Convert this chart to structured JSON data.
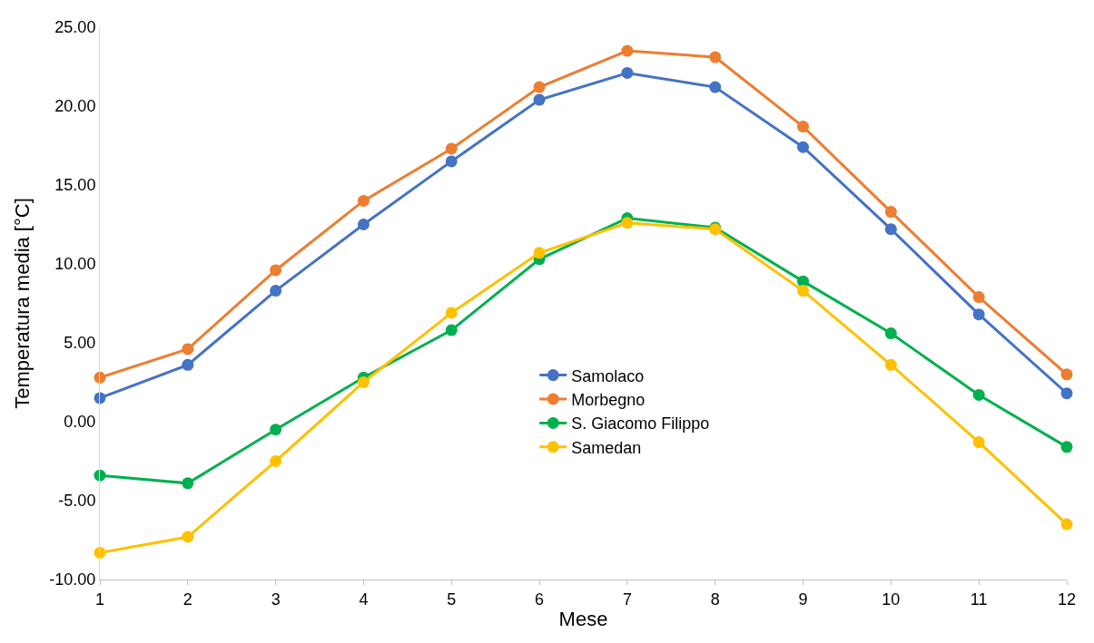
{
  "chart_data": {
    "type": "line",
    "xlabel": "Mese",
    "ylabel": "Temperatura media [°C]",
    "x": [
      1,
      2,
      3,
      4,
      5,
      6,
      7,
      8,
      9,
      10,
      11,
      12
    ],
    "xlim": [
      1,
      12
    ],
    "xticks": [
      1,
      2,
      3,
      4,
      5,
      6,
      7,
      8,
      9,
      10,
      11,
      12
    ],
    "series": [
      {
        "name": "Samolaco",
        "color": "#4472c4",
        "values": [
          1.5,
          3.6,
          8.3,
          12.5,
          16.5,
          20.4,
          22.1,
          21.2,
          17.4,
          12.2,
          6.8,
          1.8
        ]
      },
      {
        "name": "Morbegno",
        "color": "#ed7d31",
        "values": [
          2.8,
          4.6,
          9.6,
          14.0,
          17.3,
          21.2,
          23.5,
          23.1,
          18.7,
          13.3,
          7.9,
          3.0
        ]
      },
      {
        "name": "S. Giacomo Filippo",
        "color": "#00b050",
        "values": [
          -3.4,
          -3.9,
          -0.5,
          2.8,
          5.8,
          10.3,
          12.9,
          12.3,
          8.9,
          5.6,
          1.7,
          -1.6
        ]
      },
      {
        "name": "Samedan",
        "color": "#ffc000",
        "values": [
          -8.3,
          -7.3,
          -2.5,
          2.5,
          6.9,
          10.7,
          12.6,
          12.2,
          8.3,
          3.6,
          -1.3,
          -6.5
        ]
      }
    ],
    "ylim": [
      -10,
      25
    ],
    "yticks": [
      {
        "value": -10,
        "label": "-10.00"
      },
      {
        "value": -5,
        "label": "-5.00"
      },
      {
        "value": 0,
        "label": "0.00"
      },
      {
        "value": 5,
        "label": "5.00"
      },
      {
        "value": 10,
        "label": "10.00"
      },
      {
        "value": 15,
        "label": "15.00"
      },
      {
        "value": 20,
        "label": "20.00"
      },
      {
        "value": 25,
        "label": "25.00"
      }
    ],
    "grid": false,
    "legend": "center",
    "marker": "circle",
    "line_style": "solid"
  }
}
